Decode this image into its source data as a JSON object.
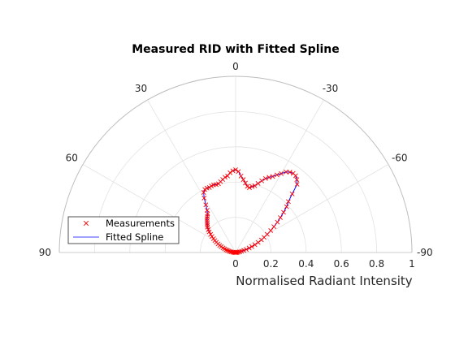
{
  "chart_data": {
    "type": "polar-half",
    "title": "Measured RID with Fitted Spline",
    "xlabel": "Normalised Radiant Intensity",
    "theta_direction": "clockwise-positive-left, 0 at top",
    "theta_range": [
      -90,
      90
    ],
    "r_range": [
      0,
      1
    ],
    "angle_ticks": [
      "90",
      "60",
      "30",
      "0",
      "-30",
      "-60",
      "-90"
    ],
    "angle_tick_values": [
      90,
      60,
      30,
      0,
      -30,
      -60,
      -90
    ],
    "r_ticks": [
      "0",
      "0.2",
      "0.4",
      "0.6",
      "0.8",
      "1"
    ],
    "r_tick_values": [
      0,
      0.2,
      0.4,
      0.6,
      0.8,
      1
    ],
    "grid": true,
    "legend_position": "bottom-left",
    "series": [
      {
        "name": "Measurements",
        "marker": "x",
        "color": "#ff0000",
        "theta": [
          90,
          88,
          86,
          84,
          82,
          80,
          78,
          76,
          74,
          72,
          70,
          68,
          66,
          64,
          62,
          60,
          58,
          56,
          54,
          52,
          50,
          48,
          46,
          44,
          42,
          40,
          38,
          36,
          34,
          32,
          30,
          28,
          26,
          24,
          22,
          20,
          18,
          16,
          14,
          12,
          10,
          8,
          6,
          4,
          2,
          0,
          -2,
          -4,
          -6,
          -8,
          -10,
          -12,
          -14,
          -16,
          -18,
          -20,
          -22,
          -24,
          -26,
          -28,
          -30,
          -32,
          -34,
          -36,
          -38,
          -40,
          -42,
          -44,
          -46,
          -48,
          -50,
          -52,
          -54,
          -56,
          -58,
          -60,
          -62,
          -64,
          -66,
          -68,
          -70,
          -72,
          -74,
          -76,
          -78,
          -80,
          -82,
          -84,
          -86,
          -88,
          -90
        ],
        "r": [
          0.0,
          0.005,
          0.01,
          0.017,
          0.025,
          0.032,
          0.04,
          0.048,
          0.056,
          0.066,
          0.076,
          0.088,
          0.099,
          0.111,
          0.124,
          0.136,
          0.148,
          0.162,
          0.175,
          0.19,
          0.202,
          0.215,
          0.223,
          0.232,
          0.242,
          0.252,
          0.261,
          0.271,
          0.289,
          0.319,
          0.357,
          0.386,
          0.398,
          0.4,
          0.398,
          0.402,
          0.404,
          0.401,
          0.402,
          0.411,
          0.421,
          0.431,
          0.437,
          0.454,
          0.464,
          0.47,
          0.46,
          0.435,
          0.416,
          0.398,
          0.381,
          0.376,
          0.386,
          0.394,
          0.412,
          0.433,
          0.453,
          0.467,
          0.48,
          0.499,
          0.517,
          0.539,
          0.55,
          0.555,
          0.553,
          0.54,
          0.521,
          0.462,
          0.416,
          0.389,
          0.355,
          0.322,
          0.293,
          0.262,
          0.235,
          0.207,
          0.183,
          0.163,
          0.14,
          0.118,
          0.098,
          0.081,
          0.063,
          0.048,
          0.035,
          0.024,
          0.015,
          0.008,
          0.004,
          0.001,
          0.0
        ]
      },
      {
        "name": "Fitted Spline",
        "marker": "line",
        "color": "#0000ff"
      }
    ]
  }
}
